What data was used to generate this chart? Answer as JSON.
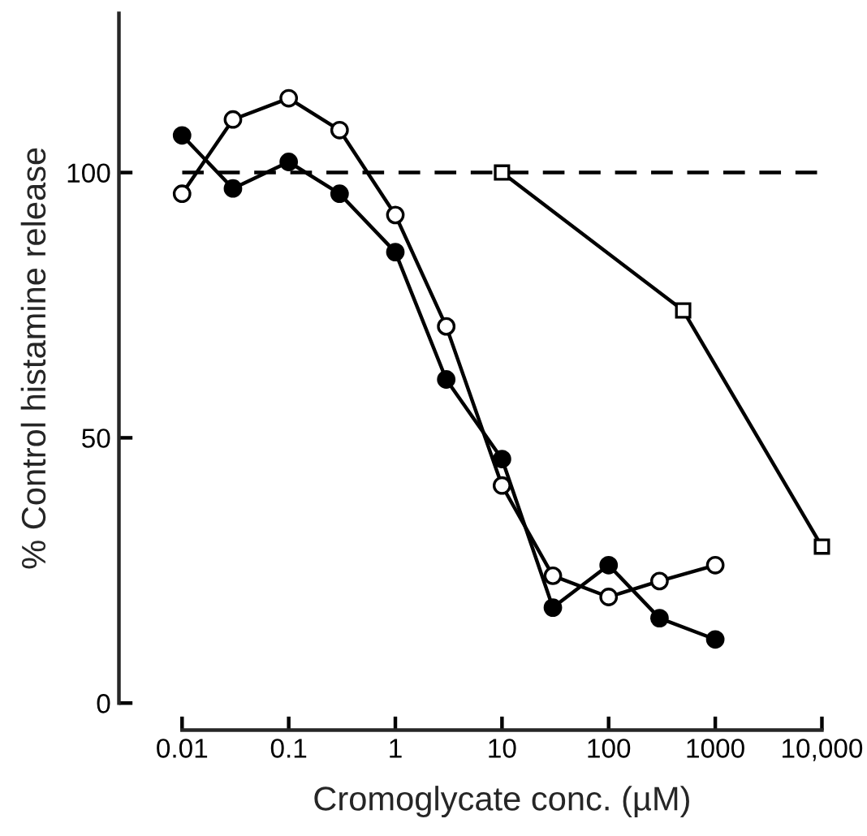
{
  "chart_data": {
    "type": "line",
    "xlabel": "Cromoglycate conc. (µM)",
    "ylabel": "% Control histamine release",
    "log": "x",
    "xlim": [
      0.01,
      10000
    ],
    "xticks": [
      0.01,
      0.1,
      1,
      10,
      100,
      1000,
      {
        "value": 10000,
        "label": "10,000"
      }
    ],
    "ylim": [
      0,
      130
    ],
    "yticks": [
      0,
      50,
      100
    ],
    "grid": false,
    "legend": false,
    "line_style": "solid",
    "ref_lines": [
      {
        "axis": "y",
        "value": 100,
        "line_style": "dashed",
        "color": "#000000"
      }
    ],
    "series": [
      {
        "color": "#000000",
        "marker": "circle",
        "x": [
          0.01,
          0.03,
          0.1,
          0.3,
          1,
          3,
          10,
          30,
          100,
          300,
          1000
        ],
        "values": [
          107,
          97,
          102,
          96,
          85,
          61,
          46,
          18,
          26,
          16,
          12
        ]
      },
      {
        "color": "#ffffff",
        "marker": "circle",
        "x": [
          0.01,
          0.03,
          0.1,
          0.3,
          1,
          3,
          10,
          30,
          100,
          300,
          1000
        ],
        "values": [
          96,
          110,
          114,
          108,
          92,
          71,
          41,
          24,
          20,
          23,
          26
        ]
      },
      {
        "color": "#ffffff",
        "marker": "square",
        "x": [
          10,
          500,
          10000
        ],
        "values": [
          100,
          74,
          29.5
        ]
      }
    ]
  }
}
